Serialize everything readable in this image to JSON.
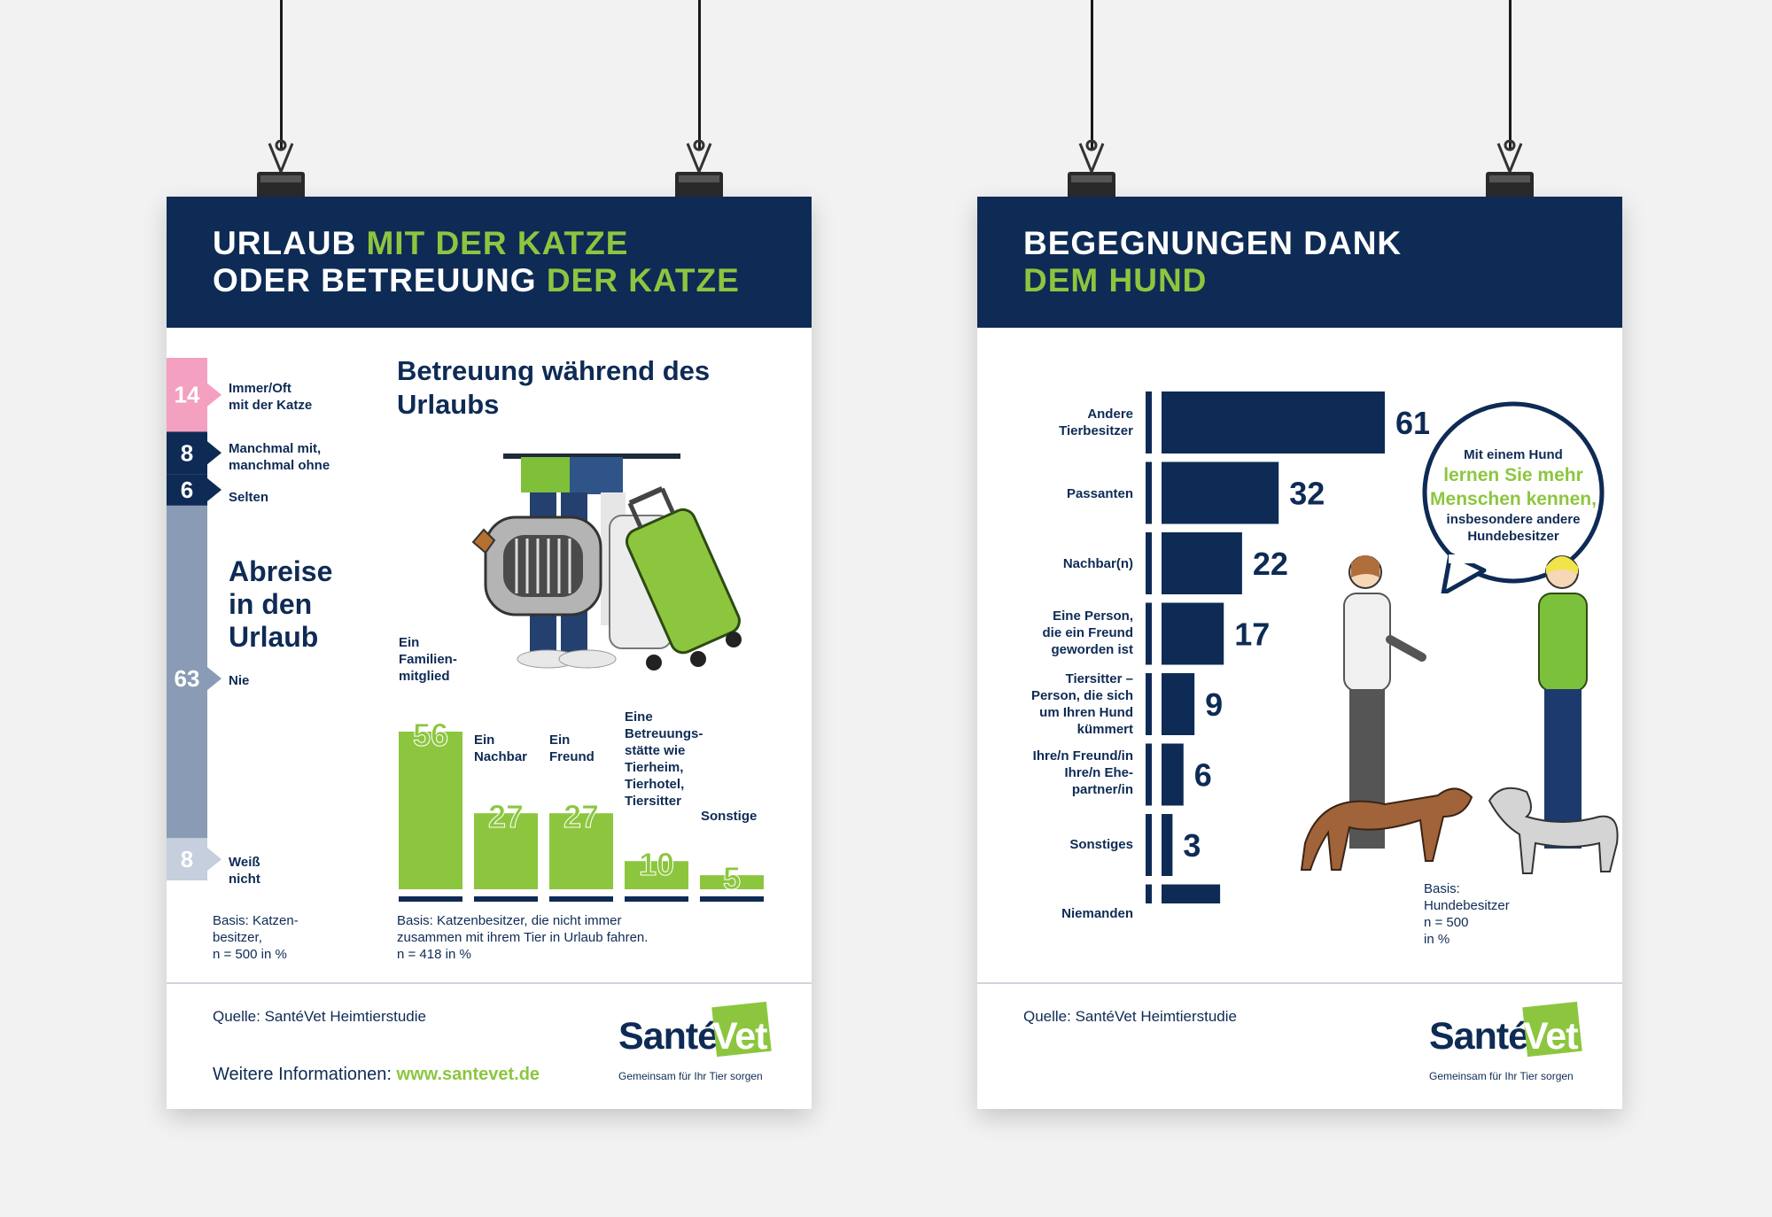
{
  "left_poster": {
    "title_line1_white": "URLAUB",
    "title_line1_green": "MIT DER KATZE",
    "title_line2_white": "ODER BETREUUNG",
    "title_line2_green": "DER KATZE",
    "stack_section_title": "Abreise in den Urlaub",
    "stack_basis": "Basis: Katzen-\nbesitzer,\nn = 500 in %",
    "bars_title": "Betreuung während des Urlaubs",
    "bars_basis": "Basis: Katzenbesitzer, die nicht immer\nzusammen mit ihrem Tier in Urlaub fahren.\nn = 418 in %",
    "source": "Quelle: SantéVet Heimtierstudie",
    "more_info_label": "Weitere Informationen:",
    "more_info_url": "www.santevet.de"
  },
  "right_poster": {
    "title_line1": "BEGEGNUNGEN DANK",
    "title_line2": "DEM HUND",
    "bubble_line1": "Mit einem Hund",
    "bubble_highlight": "lernen Sie mehr Menschen kennen,",
    "bubble_line2": "insbesondere andere Hundebesitzer",
    "basis": "Basis:\nHundebesitzer\nn = 500\nin %",
    "source": "Quelle: SantéVet Heimtierstudie"
  },
  "logo": {
    "sante": "Santé",
    "vet": "Vet",
    "tagline": "Gemeinsam für Ihr Tier sorgen"
  },
  "colors": {
    "navy": "#0e2b55",
    "green": "#8cc63f",
    "pink": "#f4a0c0",
    "grey_blue": "#8a9bb6",
    "light_grey_blue": "#c5cfdd"
  },
  "chart_data": [
    {
      "type": "bar",
      "subtype": "stacked-vertical",
      "title": "Abreise in den Urlaub",
      "categories": [
        "Immer/Oft mit der Katze",
        "Manchmal mit, manchmal ohne",
        "Selten",
        "Nie",
        "Weiß nicht"
      ],
      "values": [
        14,
        8,
        6,
        63,
        8
      ],
      "labels": [
        "14",
        "8",
        "6",
        "63",
        "8"
      ],
      "colors": [
        "#f4a0c0",
        "#0e2b55",
        "#0e2b55",
        "#8a9bb6",
        "#c5cfdd"
      ]
    },
    {
      "type": "bar",
      "title": "Betreuung während des Urlaubs",
      "categories": [
        "Ein Familien- mitglied",
        "Ein Nachbar",
        "Ein Freund",
        "Eine Betreuungs- stätte wie Tierheim, Tierhotel, Tiersitter",
        "Sonstige"
      ],
      "values": [
        56,
        27,
        27,
        10,
        5
      ],
      "labels": [
        "56",
        "27",
        "27",
        "10",
        "5"
      ],
      "ylim": [
        0,
        60
      ]
    },
    {
      "type": "bar",
      "subtype": "horizontal",
      "title": "BEGEGNUNGEN DANK DEM HUND",
      "categories": [
        "Andere Tierbesitzer",
        "Passanten",
        "Nachbar(n)",
        "Eine Person, die ein Freund geworden ist",
        "Tiersitter - Person, die sich um Ihren Hund kümmert",
        "Ihre/n Freund/in Ihre/n Ehe- partner/in",
        "Sonstiges",
        "Niemanden"
      ],
      "values": [
        61,
        32,
        22,
        17,
        9,
        6,
        3,
        16
      ],
      "labels": [
        "61",
        "32",
        "22",
        "17",
        "9",
        "6",
        "3",
        "16"
      ],
      "xlim": [
        0,
        65
      ]
    }
  ]
}
